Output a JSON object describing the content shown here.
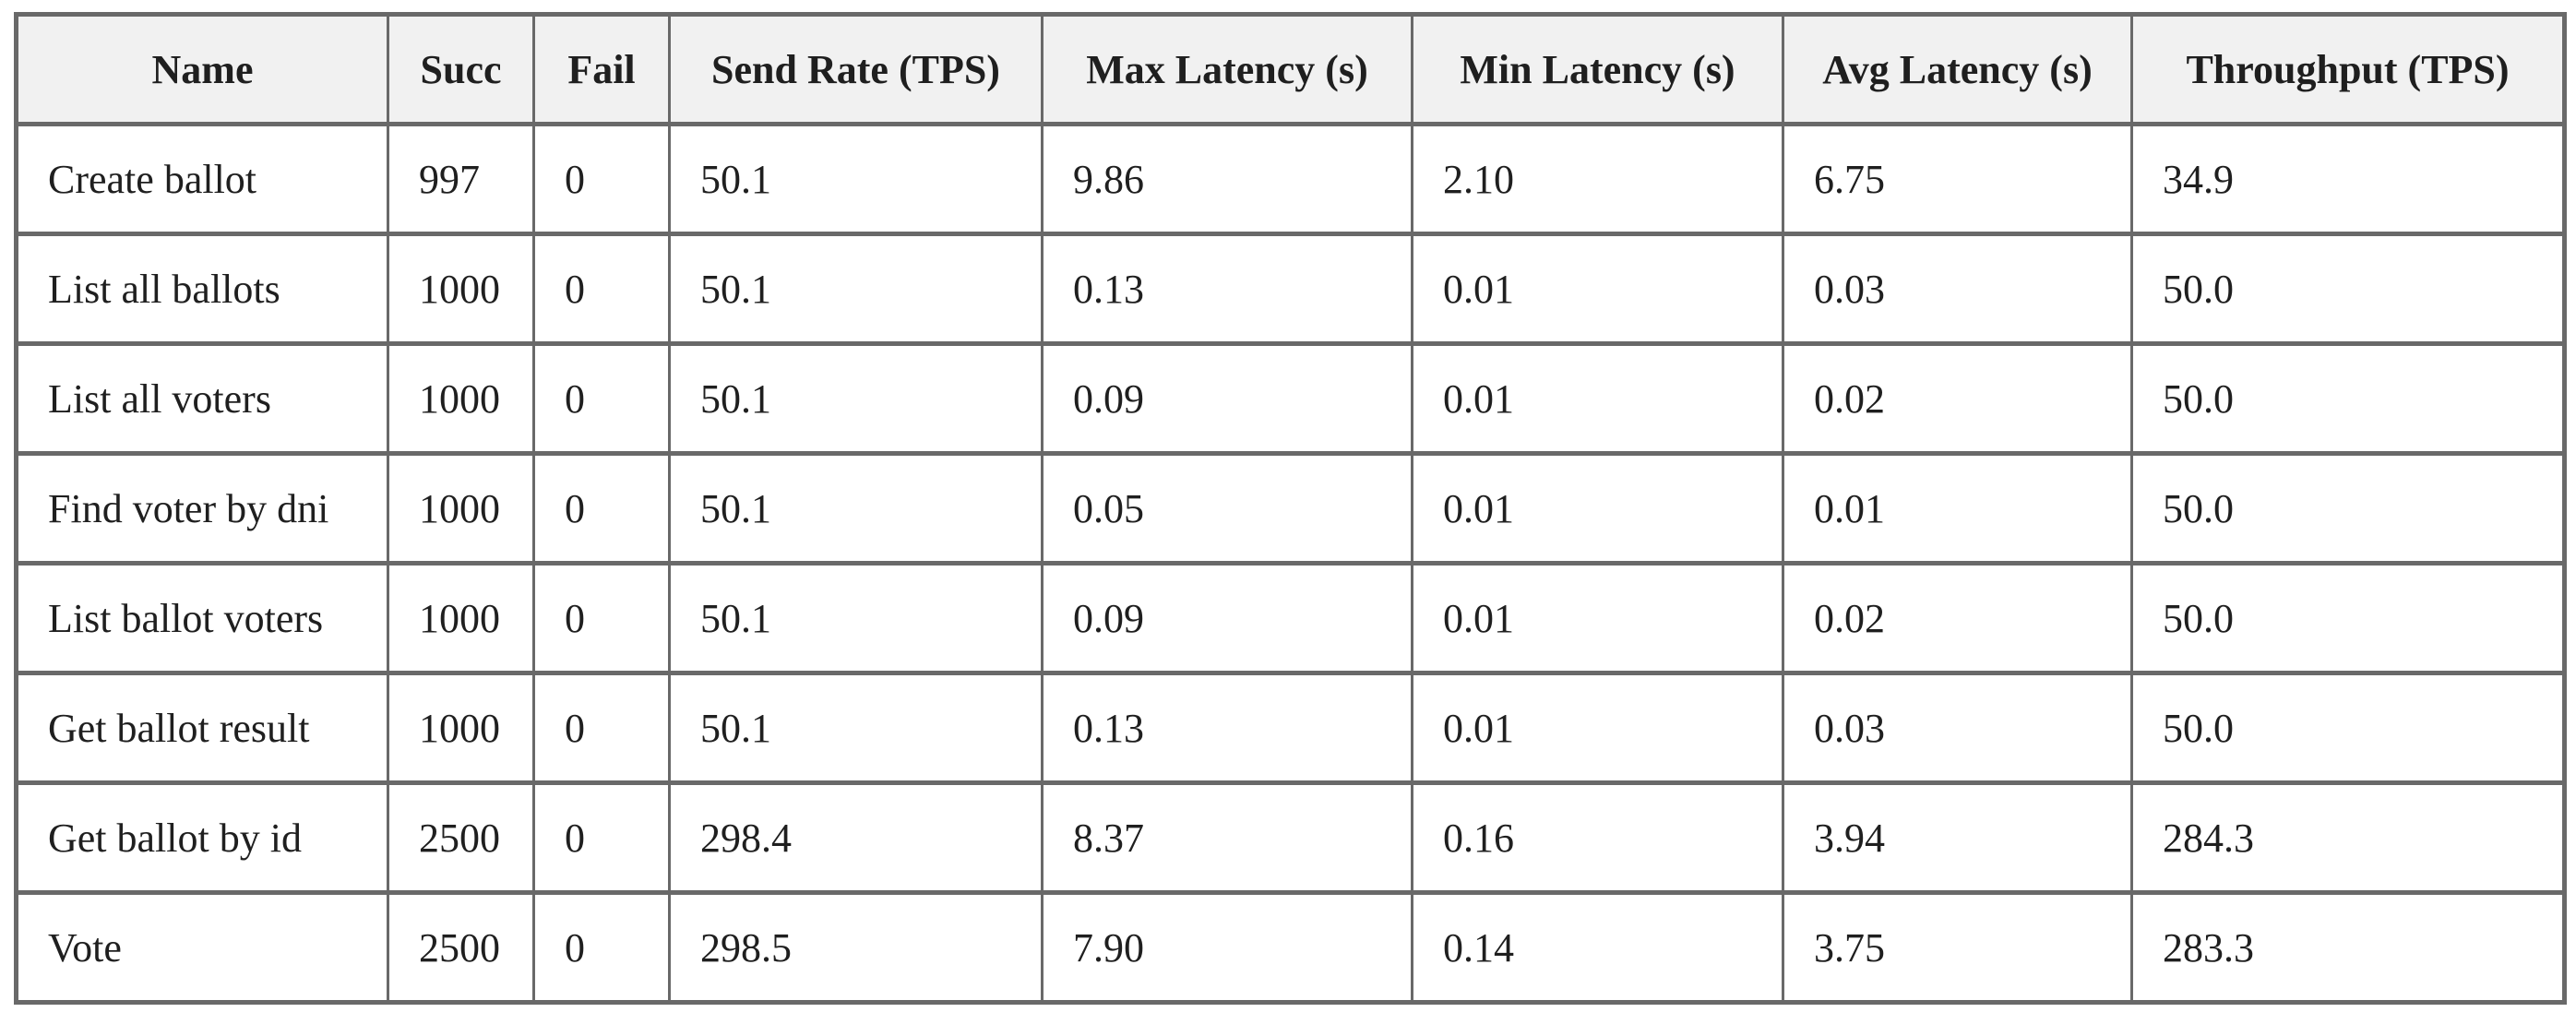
{
  "chart_data": {
    "type": "table",
    "columns": [
      "Name",
      "Succ",
      "Fail",
      "Send Rate (TPS)",
      "Max Latency (s)",
      "Min Latency (s)",
      "Avg Latency (s)",
      "Throughput (TPS)"
    ],
    "rows": [
      [
        "Create ballot",
        "997",
        "0",
        "50.1",
        "9.86",
        "2.10",
        "6.75",
        "34.9"
      ],
      [
        "List all ballots",
        "1000",
        "0",
        "50.1",
        "0.13",
        "0.01",
        "0.03",
        "50.0"
      ],
      [
        "List all voters",
        "1000",
        "0",
        "50.1",
        "0.09",
        "0.01",
        "0.02",
        "50.0"
      ],
      [
        "Find voter by dni",
        "1000",
        "0",
        "50.1",
        "0.05",
        "0.01",
        "0.01",
        "50.0"
      ],
      [
        "List ballot voters",
        "1000",
        "0",
        "50.1",
        "0.09",
        "0.01",
        "0.02",
        "50.0"
      ],
      [
        "Get ballot result",
        "1000",
        "0",
        "50.1",
        "0.13",
        "0.01",
        "0.03",
        "50.0"
      ],
      [
        "Get ballot by id",
        "2500",
        "0",
        "298.4",
        "8.37",
        "0.16",
        "3.94",
        "284.3"
      ],
      [
        "Vote",
        "2500",
        "0",
        "298.5",
        "7.90",
        "0.14",
        "3.75",
        "283.3"
      ]
    ]
  },
  "colors": {
    "background": "#ffffff",
    "header_bg": "#f1f1f1",
    "row_bg": "#ffffff",
    "border": "#696969",
    "text": "#1f1f1f"
  }
}
